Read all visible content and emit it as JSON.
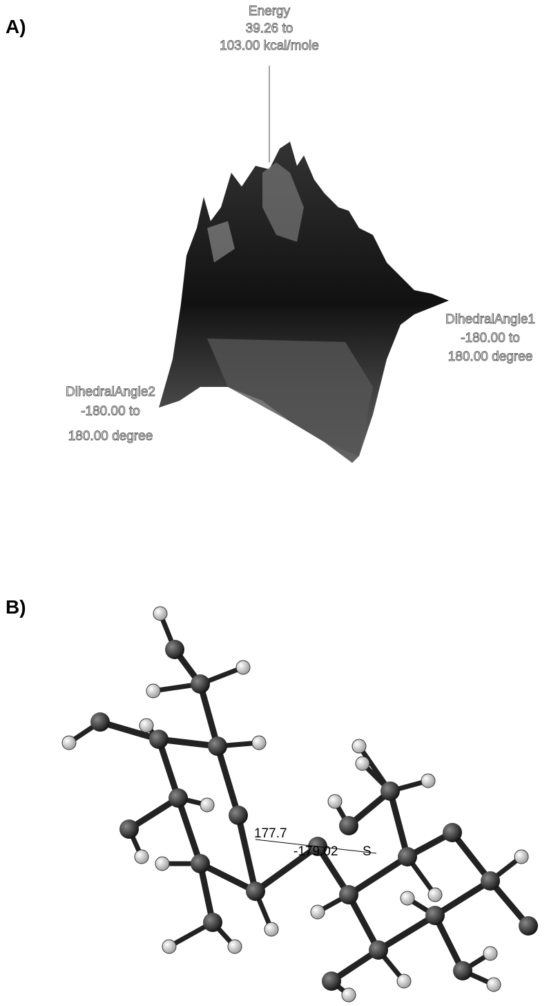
{
  "panel_a": {
    "label": "A)",
    "z_axis": {
      "name": "Energy",
      "range_line1": "39.26 to",
      "range_line2": "103.00 kcal/mole"
    },
    "x_axis": {
      "name": "DihedralAngle1",
      "range_line1": "-180.00 to",
      "range_line2": "180.00 degree"
    },
    "y_axis": {
      "name": "DihedralAngle2",
      "range_line1": "-180.00 to",
      "range_line2": "180.00 degree"
    }
  },
  "panel_b": {
    "label": "B)",
    "dihedral_labels": [
      "177.7",
      "-179.02"
    ],
    "atom_label": "S"
  }
}
